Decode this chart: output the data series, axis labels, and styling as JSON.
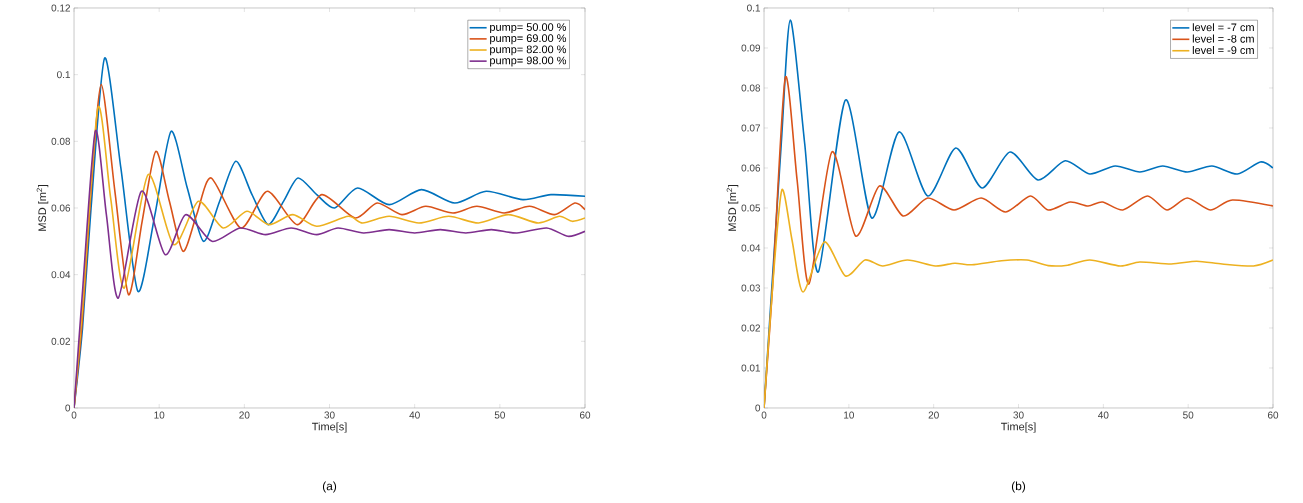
{
  "chart_data": [
    {
      "type": "line",
      "xlabel": "Time[s]",
      "ylabel": "MSD [m$^{2}$]",
      "xlim": [
        0,
        60
      ],
      "ylim": [
        0,
        0.12
      ],
      "xticks": [
        0,
        10,
        20,
        30,
        40,
        50,
        60
      ],
      "yticks": [
        0,
        0.02,
        0.04,
        0.06,
        0.08,
        0.1,
        0.12
      ],
      "legend": "top right",
      "annotations": [
        "(a)"
      ],
      "series": [
        {
          "name": "pump= 50.00 %",
          "color": "#0072bd",
          "x": [
            0,
            1,
            2,
            3.6,
            5.5,
            7.5,
            9.5,
            11.4,
            13.3,
            15.2,
            17.1,
            19,
            20.9,
            22.8,
            24.6,
            26.3,
            28.5,
            30.6,
            33.3,
            37,
            40.8,
            44.7,
            48.4,
            52.7,
            56,
            60
          ],
          "values": [
            0,
            0.024,
            0.06,
            0.105,
            0.072,
            0.035,
            0.058,
            0.083,
            0.066,
            0.05,
            0.062,
            0.074,
            0.064,
            0.055,
            0.062,
            0.069,
            0.064,
            0.06,
            0.066,
            0.061,
            0.0655,
            0.0615,
            0.065,
            0.0625,
            0.064,
            0.0635
          ]
        },
        {
          "name": "pump= 69.00 %",
          "color": "#d95319",
          "x": [
            0,
            1,
            2,
            3.2,
            4.8,
            6.4,
            8,
            9.6,
            11.2,
            12.8,
            14.4,
            16.1,
            19.6,
            22.7,
            26.2,
            29.1,
            33,
            35.6,
            38.5,
            41.3,
            44.5,
            47.3,
            50.5,
            53.5,
            56.4,
            58.8,
            60
          ],
          "values": [
            0,
            0.027,
            0.065,
            0.097,
            0.065,
            0.034,
            0.056,
            0.077,
            0.062,
            0.047,
            0.058,
            0.069,
            0.054,
            0.065,
            0.055,
            0.064,
            0.057,
            0.0615,
            0.058,
            0.0605,
            0.0585,
            0.0605,
            0.0585,
            0.0605,
            0.058,
            0.0615,
            0.0595
          ]
        },
        {
          "name": "pump= 82.00 %",
          "color": "#edb120",
          "x": [
            0,
            1,
            2.8,
            4.3,
            5.9,
            8.7,
            11.7,
            14.6,
            17.5,
            20.3,
            22.9,
            25.7,
            28.5,
            32.2,
            33.9,
            37,
            40.5,
            44,
            47.5,
            51,
            54.5,
            57,
            58.5,
            60
          ],
          "values": [
            0,
            0.03,
            0.09,
            0.063,
            0.036,
            0.07,
            0.049,
            0.062,
            0.054,
            0.059,
            0.055,
            0.058,
            0.0545,
            0.0575,
            0.0555,
            0.0575,
            0.0555,
            0.0575,
            0.0555,
            0.058,
            0.0555,
            0.0575,
            0.056,
            0.057
          ]
        },
        {
          "name": "pump= 98.00 %",
          "color": "#7e2f8e",
          "x": [
            0,
            1,
            2.5,
            3.8,
            5.2,
            7.9,
            10.7,
            13.1,
            16.2,
            19.5,
            22.5,
            25.5,
            28.5,
            31,
            34,
            37,
            40,
            43,
            46,
            49,
            52,
            55.5,
            58,
            60
          ],
          "values": [
            0,
            0.035,
            0.083,
            0.058,
            0.033,
            0.065,
            0.046,
            0.058,
            0.05,
            0.054,
            0.052,
            0.054,
            0.052,
            0.054,
            0.0525,
            0.0535,
            0.0525,
            0.0535,
            0.0525,
            0.0535,
            0.0525,
            0.054,
            0.0515,
            0.053
          ]
        }
      ]
    },
    {
      "type": "line",
      "xlabel": "Time[s]",
      "ylabel": "MSD [m$^{2}$]",
      "xlim": [
        0,
        60
      ],
      "ylim": [
        0,
        0.1
      ],
      "xticks": [
        0,
        10,
        20,
        30,
        40,
        50,
        60
      ],
      "yticks": [
        0,
        0.01,
        0.02,
        0.03,
        0.04,
        0.05,
        0.06,
        0.07,
        0.08,
        0.09,
        0.1
      ],
      "legend": "top right",
      "annotations": [
        "(b)"
      ],
      "series": [
        {
          "name": "level = -7 cm",
          "color": "#0072bd",
          "x": [
            0,
            2,
            3.1,
            4.8,
            6.4,
            9.6,
            12.7,
            15.9,
            19.3,
            22.6,
            25.7,
            29,
            32.3,
            35.5,
            38.4,
            41.4,
            44.3,
            47,
            49.9,
            52.8,
            55.8,
            58.5,
            60
          ],
          "values": [
            0,
            0.065,
            0.097,
            0.066,
            0.034,
            0.077,
            0.0475,
            0.069,
            0.053,
            0.065,
            0.055,
            0.064,
            0.057,
            0.0618,
            0.0585,
            0.0605,
            0.059,
            0.0605,
            0.059,
            0.0605,
            0.0585,
            0.0615,
            0.06
          ]
        },
        {
          "name": "level = -8 cm",
          "color": "#d95319",
          "x": [
            0,
            1,
            2.5,
            3.9,
            5.3,
            8,
            10.8,
            13.6,
            16.4,
            19.3,
            22.4,
            25.6,
            28.5,
            31.4,
            33.5,
            36.1,
            38.2,
            39.9,
            42.3,
            45.2,
            47.5,
            49.9,
            52.6,
            55.2,
            60
          ],
          "values": [
            0,
            0.03,
            0.0825,
            0.057,
            0.031,
            0.064,
            0.043,
            0.0555,
            0.048,
            0.0525,
            0.0495,
            0.0525,
            0.049,
            0.053,
            0.0495,
            0.0515,
            0.0505,
            0.0515,
            0.0495,
            0.053,
            0.0495,
            0.0525,
            0.0495,
            0.052,
            0.0505
          ]
        },
        {
          "name": "level = -9 cm",
          "color": "#edb120",
          "x": [
            0,
            1,
            2.1,
            3.3,
            4.6,
            7.1,
            9.6,
            11.9,
            14,
            16.9,
            20.2,
            22.5,
            24.5,
            28,
            31,
            33.5,
            35.8,
            38.4,
            42,
            44.3,
            48,
            51,
            54,
            57.7,
            60
          ],
          "values": [
            0,
            0.03,
            0.0545,
            0.042,
            0.029,
            0.0415,
            0.033,
            0.037,
            0.0355,
            0.037,
            0.0355,
            0.0362,
            0.0358,
            0.0368,
            0.037,
            0.0356,
            0.0357,
            0.037,
            0.0355,
            0.0365,
            0.036,
            0.0367,
            0.036,
            0.0355,
            0.037
          ]
        }
      ]
    }
  ]
}
